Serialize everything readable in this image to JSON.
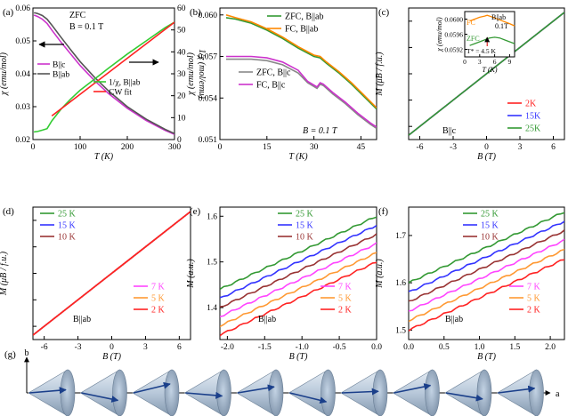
{
  "chart_data": [
    {
      "panel_label": "(a)",
      "type": "line",
      "xlabel": "T (K)",
      "ylabel": "χ (emu/mol)",
      "y2label": "1/χ (mol/emu)",
      "xlim": [
        0,
        300
      ],
      "ylim": [
        0.02,
        0.06
      ],
      "y2lim": [
        0,
        60
      ],
      "xticks": [
        0,
        100,
        200,
        300
      ],
      "yticks": [
        0.02,
        0.03,
        0.04,
        0.05,
        0.06
      ],
      "y2ticks": [
        0,
        10,
        20,
        30,
        40,
        50,
        60
      ],
      "annotations": [
        "ZFC",
        "B = 0.1 T"
      ],
      "series": [
        {
          "name": "B||c",
          "axis": "left",
          "color": "#cc33cc",
          "x": [
            2,
            5,
            10,
            20,
            30,
            40,
            60,
            80,
            100,
            130,
            160,
            200,
            240,
            280,
            300
          ],
          "y": [
            0.0578,
            0.0577,
            0.0574,
            0.0566,
            0.0553,
            0.0533,
            0.0495,
            0.046,
            0.0425,
            0.038,
            0.034,
            0.0295,
            0.0258,
            0.0228,
            0.0216
          ]
        },
        {
          "name": "B||ab",
          "axis": "left",
          "color": "#555555",
          "x": [
            2,
            5,
            10,
            20,
            30,
            40,
            60,
            80,
            100,
            130,
            160,
            200,
            240,
            280,
            300
          ],
          "y": [
            0.0585,
            0.0585,
            0.0583,
            0.0577,
            0.0566,
            0.0548,
            0.051,
            0.0473,
            0.0437,
            0.039,
            0.0348,
            0.03,
            0.0262,
            0.0231,
            0.0218
          ]
        },
        {
          "name": "1/χ, B||ab",
          "axis": "right",
          "color": "#33cc33",
          "x": [
            2,
            10,
            20,
            30,
            40,
            60,
            80,
            100,
            130,
            160,
            200,
            240,
            280,
            300
          ],
          "y": [
            3.5,
            3.7,
            4.3,
            5.0,
            8.5,
            14.0,
            18.5,
            22.5,
            27.5,
            32.5,
            39.0,
            45.0,
            51.0,
            53.5
          ]
        },
        {
          "name": "CW fit",
          "axis": "right",
          "color": "#ff2222",
          "x": [
            40,
            300
          ],
          "y": [
            10.8,
            53.5
          ]
        }
      ]
    },
    {
      "panel_label": "(b)",
      "type": "line",
      "xlabel": "T (K)",
      "ylabel": "χ (emu/mol)",
      "xlim": [
        0,
        50
      ],
      "ylim": [
        0.051,
        0.0605
      ],
      "xticks": [
        0,
        15,
        30,
        45
      ],
      "yticks": [
        0.051,
        0.054,
        0.057,
        0.06
      ],
      "annotations": [
        "B = 0.1 T"
      ],
      "series": [
        {
          "name": "ZFC, B||ab",
          "color": "#339933",
          "x": [
            2,
            5,
            10,
            15,
            20,
            25,
            30,
            32,
            34,
            38,
            42,
            46,
            50
          ],
          "y": [
            0.0598,
            0.0597,
            0.0594,
            0.0589,
            0.0583,
            0.0576,
            0.057,
            0.0569,
            0.0565,
            0.0558,
            0.055,
            0.0541,
            0.0532
          ]
        },
        {
          "name": "FC, B||ab",
          "color": "#ff8800",
          "x": [
            2,
            5,
            10,
            15,
            20,
            25,
            30,
            32,
            34,
            38,
            42,
            46,
            50
          ],
          "y": [
            0.06,
            0.0598,
            0.0595,
            0.059,
            0.0584,
            0.0577,
            0.0571,
            0.057,
            0.0566,
            0.0559,
            0.0551,
            0.0542,
            0.0533
          ]
        },
        {
          "name": "ZFC, B||c",
          "color": "#888888",
          "x": [
            2,
            5,
            10,
            15,
            20,
            25,
            28,
            31,
            32,
            33,
            36,
            40,
            44,
            48,
            50
          ],
          "y": [
            0.0568,
            0.0568,
            0.0568,
            0.0567,
            0.0564,
            0.0558,
            0.0551,
            0.0547,
            0.055,
            0.0549,
            0.0543,
            0.0536,
            0.0528,
            0.0521,
            0.0518
          ]
        },
        {
          "name": "FC, B||c",
          "color": "#cc33cc",
          "x": [
            2,
            5,
            10,
            15,
            20,
            25,
            28,
            31,
            32,
            33,
            36,
            40,
            44,
            48,
            50
          ],
          "y": [
            0.057,
            0.057,
            0.057,
            0.0569,
            0.0566,
            0.056,
            0.0552,
            0.0548,
            0.0551,
            0.055,
            0.0544,
            0.0537,
            0.0529,
            0.0522,
            0.0519
          ]
        }
      ]
    },
    {
      "panel_label": "(c)",
      "type": "line",
      "xlabel": "B (T)",
      "ylabel": "M (μB / f.u.)",
      "xlim": [
        -7,
        7
      ],
      "ylim": [
        -0.75,
        0.75
      ],
      "xticks": [
        -6,
        -3,
        0,
        3,
        6
      ],
      "annotations": [
        "B||c"
      ],
      "series": [
        {
          "name": "2K",
          "color": "#ff2222",
          "x": [
            -7,
            7
          ],
          "y": [
            -0.7,
            0.7
          ]
        },
        {
          "name": "15K",
          "color": "#3333ff",
          "x": [
            -7,
            7
          ],
          "y": [
            -0.7,
            0.7
          ]
        },
        {
          "name": "25K",
          "color": "#339933",
          "x": [
            -7,
            7
          ],
          "y": [
            -0.7,
            0.7
          ]
        }
      ],
      "inset": {
        "xlabel": "T (K)",
        "ylabel": "χ (emu/mol)",
        "xlim": [
          0,
          10
        ],
        "ylim": [
          0.059,
          0.0602
        ],
        "xticks": [
          0,
          3,
          6,
          9
        ],
        "yticks": [
          0.0592,
          0.0596,
          0.06
        ],
        "annotations": [
          "B||ab",
          "0.1T",
          "T* = 4.5 K"
        ],
        "series": [
          {
            "name": "FC",
            "color": "#ff8800",
            "x": [
              1,
              2,
              3,
              4,
              4.5,
              5,
              6,
              7,
              8,
              9,
              10
            ],
            "y": [
              0.05995,
              0.06,
              0.06005,
              0.06008,
              0.0601,
              0.06008,
              0.06003,
              0.05998,
              0.05993,
              0.05988,
              0.05982
            ]
          },
          {
            "name": "ZFC",
            "color": "#339933",
            "x": [
              1,
              2,
              3,
              4,
              4.5,
              5,
              6,
              7,
              8,
              9,
              10
            ],
            "y": [
              0.0593,
              0.05935,
              0.0594,
              0.05945,
              0.05948,
              0.0595,
              0.05952,
              0.0595,
              0.05945,
              0.0594,
              0.05935
            ]
          }
        ]
      }
    },
    {
      "panel_label": "(d)",
      "type": "line",
      "xlabel": "B (T)",
      "ylabel": "M (μB / f.u.)",
      "xlim": [
        -7,
        7
      ],
      "ylim": [
        -0.75,
        0.75
      ],
      "xticks": [
        -6,
        -3,
        0,
        3,
        6
      ],
      "annotations": [
        "B||ab"
      ],
      "series": [
        {
          "name": "25 K",
          "color": "#339933",
          "x": [
            -7,
            7
          ],
          "y": [
            -0.7,
            0.7
          ]
        },
        {
          "name": "15 K",
          "color": "#3333ff",
          "x": [
            -7,
            7
          ],
          "y": [
            -0.7,
            0.7
          ]
        },
        {
          "name": "10 K",
          "color": "#993333",
          "x": [
            -7,
            7
          ],
          "y": [
            -0.7,
            0.7
          ]
        },
        {
          "name": "7 K",
          "color": "#ff44ff",
          "x": [
            -7,
            7
          ],
          "y": [
            -0.7,
            0.7
          ]
        },
        {
          "name": "5 K",
          "color": "#ff9933",
          "x": [
            -7,
            7
          ],
          "y": [
            -0.7,
            0.7
          ]
        },
        {
          "name": "2 K",
          "color": "#ff2222",
          "x": [
            -7,
            7
          ],
          "y": [
            -0.7,
            0.7
          ]
        }
      ]
    },
    {
      "panel_label": "(e)",
      "type": "line",
      "xlabel": "B (T)",
      "ylabel": "M (a.u.)",
      "xlim": [
        -2.1,
        0.0
      ],
      "ylim": [
        1.33,
        1.62
      ],
      "xticks": [
        -2.0,
        -1.5,
        -1.0,
        -0.5,
        0.0
      ],
      "yticks": [
        1.4,
        1.5,
        1.6
      ],
      "annotations": [
        "B||ab"
      ],
      "series": [
        {
          "name": "25 K",
          "color": "#339933",
          "x": [
            -2.1,
            0.0
          ],
          "y": [
            1.44,
            1.6
          ]
        },
        {
          "name": "15 K",
          "color": "#3333ff",
          "x": [
            -2.1,
            0.0
          ],
          "y": [
            1.42,
            1.58
          ]
        },
        {
          "name": "10 K",
          "color": "#993333",
          "x": [
            -2.1,
            0.0
          ],
          "y": [
            1.4,
            1.56
          ]
        },
        {
          "name": "7 K",
          "color": "#ff44ff",
          "x": [
            -2.1,
            0.0
          ],
          "y": [
            1.38,
            1.54
          ]
        },
        {
          "name": "5 K",
          "color": "#ff9933",
          "x": [
            -2.1,
            0.0
          ],
          "y": [
            1.36,
            1.52
          ]
        },
        {
          "name": "2 K",
          "color": "#ff2222",
          "x": [
            -2.1,
            0.0
          ],
          "y": [
            1.34,
            1.5
          ]
        }
      ]
    },
    {
      "panel_label": "(f)",
      "type": "line",
      "xlabel": "B (T)",
      "ylabel": "M (a.u.)",
      "xlim": [
        0.0,
        2.2
      ],
      "ylim": [
        1.48,
        1.76
      ],
      "xticks": [
        0.0,
        0.5,
        1.0,
        1.5,
        2.0
      ],
      "yticks": [
        1.5,
        1.6,
        1.7
      ],
      "annotations": [
        "B||ab"
      ],
      "series": [
        {
          "name": "25 K",
          "color": "#339933",
          "x": [
            0.0,
            2.2
          ],
          "y": [
            1.6,
            1.75
          ]
        },
        {
          "name": "15 K",
          "color": "#3333ff",
          "x": [
            0.0,
            2.2
          ],
          "y": [
            1.58,
            1.73
          ]
        },
        {
          "name": "10 K",
          "color": "#993333",
          "x": [
            0.0,
            2.2
          ],
          "y": [
            1.56,
            1.71
          ]
        },
        {
          "name": "7 K",
          "color": "#ff44ff",
          "x": [
            0.0,
            2.2
          ],
          "y": [
            1.54,
            1.69
          ]
        },
        {
          "name": "5 K",
          "color": "#ff9933",
          "x": [
            0.0,
            2.2
          ],
          "y": [
            1.52,
            1.67
          ]
        },
        {
          "name": "2 K",
          "color": "#ff2222",
          "x": [
            0.0,
            2.2
          ],
          "y": [
            1.5,
            1.65
          ]
        }
      ]
    }
  ],
  "diagram_g": {
    "panel_label": "(g)",
    "axis_b": "b",
    "axis_a": "a",
    "cone_count": 10,
    "spin_angles_deg": [
      10,
      -25,
      30,
      -10,
      20,
      -30,
      5,
      25,
      -20,
      15
    ]
  }
}
